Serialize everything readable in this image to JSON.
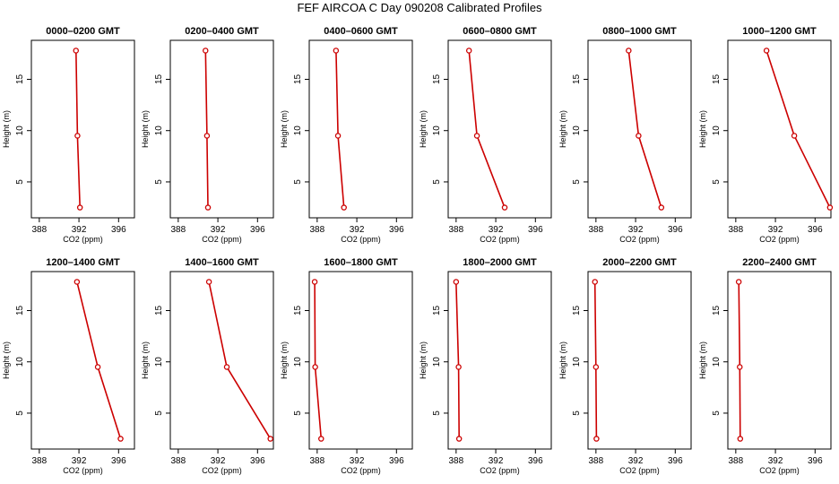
{
  "figure": {
    "title": "FEF AIRCOA C  Day 090208  Calibrated Profiles"
  },
  "style": {
    "line_color": "#cc0000",
    "marker_color": "#cc0000",
    "axis_color": "#000000"
  },
  "chart_data": [
    {
      "type": "line",
      "title": "0000–0200 GMT",
      "xlabel": "CO2 (ppm)",
      "ylabel": "Height (m)",
      "xlim": [
        387.2,
        397.6
      ],
      "ylim": [
        1.5,
        18.8
      ],
      "xticks": [
        388,
        392,
        396
      ],
      "yticks": [
        5,
        10,
        15
      ],
      "x": [
        391.7,
        391.85,
        392.1
      ],
      "y": [
        17.8,
        9.5,
        2.5
      ]
    },
    {
      "type": "line",
      "title": "0200–0400 GMT",
      "xlabel": "CO2 (ppm)",
      "ylabel": "Height (m)",
      "xlim": [
        387.2,
        397.6
      ],
      "ylim": [
        1.5,
        18.8
      ],
      "xticks": [
        388,
        392,
        396
      ],
      "yticks": [
        5,
        10,
        15
      ],
      "x": [
        390.75,
        390.9,
        391.0
      ],
      "y": [
        17.8,
        9.5,
        2.5
      ]
    },
    {
      "type": "line",
      "title": "0400–0600 GMT",
      "xlabel": "CO2 (ppm)",
      "ylabel": "Height (m)",
      "xlim": [
        387.2,
        397.6
      ],
      "ylim": [
        1.5,
        18.8
      ],
      "xticks": [
        388,
        392,
        396
      ],
      "yticks": [
        5,
        10,
        15
      ],
      "x": [
        389.9,
        390.1,
        390.7
      ],
      "y": [
        17.8,
        9.5,
        2.5
      ]
    },
    {
      "type": "line",
      "title": "0600–0800 GMT",
      "xlabel": "CO2 (ppm)",
      "ylabel": "Height (m)",
      "xlim": [
        387.2,
        397.6
      ],
      "ylim": [
        1.5,
        18.8
      ],
      "xticks": [
        388,
        392,
        396
      ],
      "yticks": [
        5,
        10,
        15
      ],
      "x": [
        389.3,
        390.1,
        392.9
      ],
      "y": [
        17.8,
        9.5,
        2.5
      ]
    },
    {
      "type": "line",
      "title": "0800–1000 GMT",
      "xlabel": "CO2 (ppm)",
      "ylabel": "Height (m)",
      "xlim": [
        387.2,
        397.6
      ],
      "ylim": [
        1.5,
        18.8
      ],
      "xticks": [
        388,
        392,
        396
      ],
      "yticks": [
        5,
        10,
        15
      ],
      "x": [
        391.3,
        392.3,
        394.6
      ],
      "y": [
        17.8,
        9.5,
        2.5
      ]
    },
    {
      "type": "line",
      "title": "1000–1200 GMT",
      "xlabel": "CO2 (ppm)",
      "ylabel": "Height (m)",
      "xlim": [
        387.2,
        397.6
      ],
      "ylim": [
        1.5,
        18.8
      ],
      "xticks": [
        388,
        392,
        396
      ],
      "yticks": [
        5,
        10,
        15
      ],
      "x": [
        391.1,
        393.9,
        397.5
      ],
      "y": [
        17.8,
        9.5,
        2.5
      ]
    },
    {
      "type": "line",
      "title": "1200–1400 GMT",
      "xlabel": "CO2 (ppm)",
      "ylabel": "Height (m)",
      "xlim": [
        387.2,
        397.6
      ],
      "ylim": [
        1.5,
        18.8
      ],
      "xticks": [
        388,
        392,
        396
      ],
      "yticks": [
        5,
        10,
        15
      ],
      "x": [
        391.8,
        393.9,
        396.2
      ],
      "y": [
        17.8,
        9.5,
        2.5
      ]
    },
    {
      "type": "line",
      "title": "1400–1600 GMT",
      "xlabel": "CO2 (ppm)",
      "ylabel": "Height (m)",
      "xlim": [
        387.2,
        397.6
      ],
      "ylim": [
        1.5,
        18.8
      ],
      "xticks": [
        388,
        392,
        396
      ],
      "yticks": [
        5,
        10,
        15
      ],
      "x": [
        391.1,
        392.9,
        397.3
      ],
      "y": [
        17.8,
        9.5,
        2.5
      ]
    },
    {
      "type": "line",
      "title": "1600–1800 GMT",
      "xlabel": "CO2 (ppm)",
      "ylabel": "Height (m)",
      "xlim": [
        387.2,
        397.6
      ],
      "ylim": [
        1.5,
        18.8
      ],
      "xticks": [
        388,
        392,
        396
      ],
      "yticks": [
        5,
        10,
        15
      ],
      "x": [
        387.75,
        387.8,
        388.4
      ],
      "y": [
        17.8,
        9.5,
        2.5
      ]
    },
    {
      "type": "line",
      "title": "1800–2000 GMT",
      "xlabel": "CO2 (ppm)",
      "ylabel": "Height (m)",
      "xlim": [
        387.2,
        397.6
      ],
      "ylim": [
        1.5,
        18.8
      ],
      "xticks": [
        388,
        392,
        396
      ],
      "yticks": [
        5,
        10,
        15
      ],
      "x": [
        388.0,
        388.25,
        388.3
      ],
      "y": [
        17.8,
        9.5,
        2.5
      ]
    },
    {
      "type": "line",
      "title": "2000–2200 GMT",
      "xlabel": "CO2 (ppm)",
      "ylabel": "Height (m)",
      "xlim": [
        387.2,
        397.6
      ],
      "ylim": [
        1.5,
        18.8
      ],
      "xticks": [
        388,
        392,
        396
      ],
      "yticks": [
        5,
        10,
        15
      ],
      "x": [
        387.9,
        388.0,
        388.05
      ],
      "y": [
        17.8,
        9.5,
        2.5
      ]
    },
    {
      "type": "line",
      "title": "2200–2400 GMT",
      "xlabel": "CO2 (ppm)",
      "ylabel": "Height (m)",
      "xlim": [
        387.2,
        397.6
      ],
      "ylim": [
        1.5,
        18.8
      ],
      "xticks": [
        388,
        392,
        396
      ],
      "yticks": [
        5,
        10,
        15
      ],
      "x": [
        388.3,
        388.4,
        388.45
      ],
      "y": [
        17.8,
        9.5,
        2.5
      ]
    }
  ]
}
